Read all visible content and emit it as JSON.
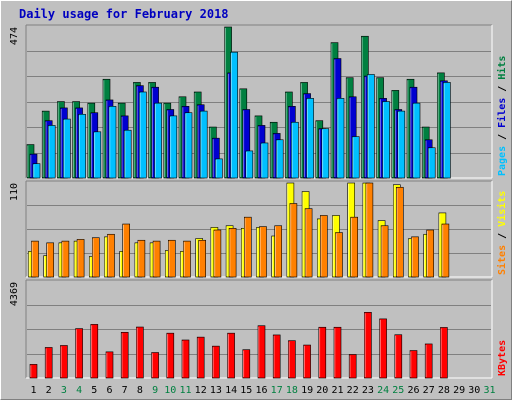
{
  "title": "Daily usage for February 2018",
  "colors": {
    "hits": "#008040",
    "files": "#0000d0",
    "pages": "#00c0ff",
    "visits": "#ffff00",
    "sites": "#ff8000",
    "kbytes": "#ff0000",
    "weekend_label": "#008040",
    "weekday_label": "#000000",
    "plot_bg": "#c0c0c0"
  },
  "chart_data": [
    {
      "type": "bar",
      "ymax_label": "474",
      "ylim": [
        0,
        474
      ],
      "grid": true,
      "ylabel": [
        "Pages",
        "Files",
        "Hits"
      ],
      "series_colors": [
        "#008040",
        "#0000d0",
        "#00c0ff"
      ],
      "series": [
        {
          "name": "Hits",
          "values": [
            105,
            210,
            240,
            240,
            235,
            310,
            235,
            300,
            300,
            235,
            255,
            270,
            160,
            474,
            280,
            195,
            175,
            270,
            300,
            180,
            425,
            315,
            445,
            315,
            275,
            310,
            160,
            330
          ]
        },
        {
          "name": "Files",
          "values": [
            75,
            180,
            220,
            220,
            205,
            245,
            195,
            290,
            285,
            215,
            225,
            230,
            125,
            330,
            215,
            165,
            140,
            225,
            265,
            155,
            375,
            255,
            320,
            250,
            215,
            285,
            120,
            305
          ]
        },
        {
          "name": "Pages",
          "values": [
            45,
            165,
            185,
            200,
            145,
            225,
            150,
            270,
            235,
            195,
            205,
            210,
            60,
            395,
            85,
            110,
            120,
            175,
            250,
            155,
            250,
            130,
            325,
            240,
            210,
            235,
            95,
            300
          ]
        }
      ]
    },
    {
      "type": "bar",
      "ymax_label": "110",
      "ylim": [
        0,
        110
      ],
      "grid": true,
      "ylabel": [
        "Sites",
        "Visits"
      ],
      "series_colors": [
        "#ffff00",
        "#ff8000"
      ],
      "series": [
        {
          "name": "Visits",
          "values": [
            30,
            25,
            40,
            42,
            24,
            47,
            30,
            40,
            40,
            31,
            30,
            45,
            58,
            60,
            57,
            58,
            48,
            110,
            100,
            68,
            72,
            110,
            110,
            66,
            108,
            45,
            50,
            75
          ]
        },
        {
          "name": "Sites",
          "values": [
            42,
            40,
            42,
            44,
            46,
            50,
            62,
            43,
            42,
            43,
            42,
            43,
            55,
            57,
            70,
            59,
            60,
            86,
            80,
            72,
            52,
            70,
            110,
            60,
            105,
            47,
            55,
            62
          ]
        }
      ]
    },
    {
      "type": "bar",
      "ymax_label": "4369",
      "ylim": [
        0,
        4369
      ],
      "grid": true,
      "ylabel": [
        "KBytes"
      ],
      "series_colors": [
        "#ff0000"
      ],
      "series": [
        {
          "name": "KBytes",
          "values": [
            620,
            1390,
            1480,
            2250,
            2440,
            1190,
            2080,
            2320,
            1160,
            2040,
            1730,
            1860,
            1450,
            2040,
            1290,
            2380,
            1960,
            1700,
            1500,
            2310,
            2310,
            1070,
            2990,
            2690,
            1970,
            1250,
            1550,
            2300
          ]
        }
      ]
    }
  ],
  "x_axis": {
    "days": [
      "1",
      "2",
      "3",
      "4",
      "5",
      "6",
      "7",
      "8",
      "9",
      "10",
      "11",
      "12",
      "13",
      "14",
      "15",
      "16",
      "17",
      "18",
      "19",
      "20",
      "21",
      "22",
      "23",
      "24",
      "25",
      "26",
      "27",
      "28",
      "29",
      "30",
      "31"
    ],
    "weekend": [
      false,
      false,
      true,
      true,
      false,
      false,
      false,
      false,
      true,
      true,
      true,
      false,
      false,
      false,
      false,
      false,
      true,
      true,
      false,
      false,
      false,
      false,
      false,
      true,
      true,
      false,
      false,
      false,
      false,
      false,
      true
    ]
  }
}
